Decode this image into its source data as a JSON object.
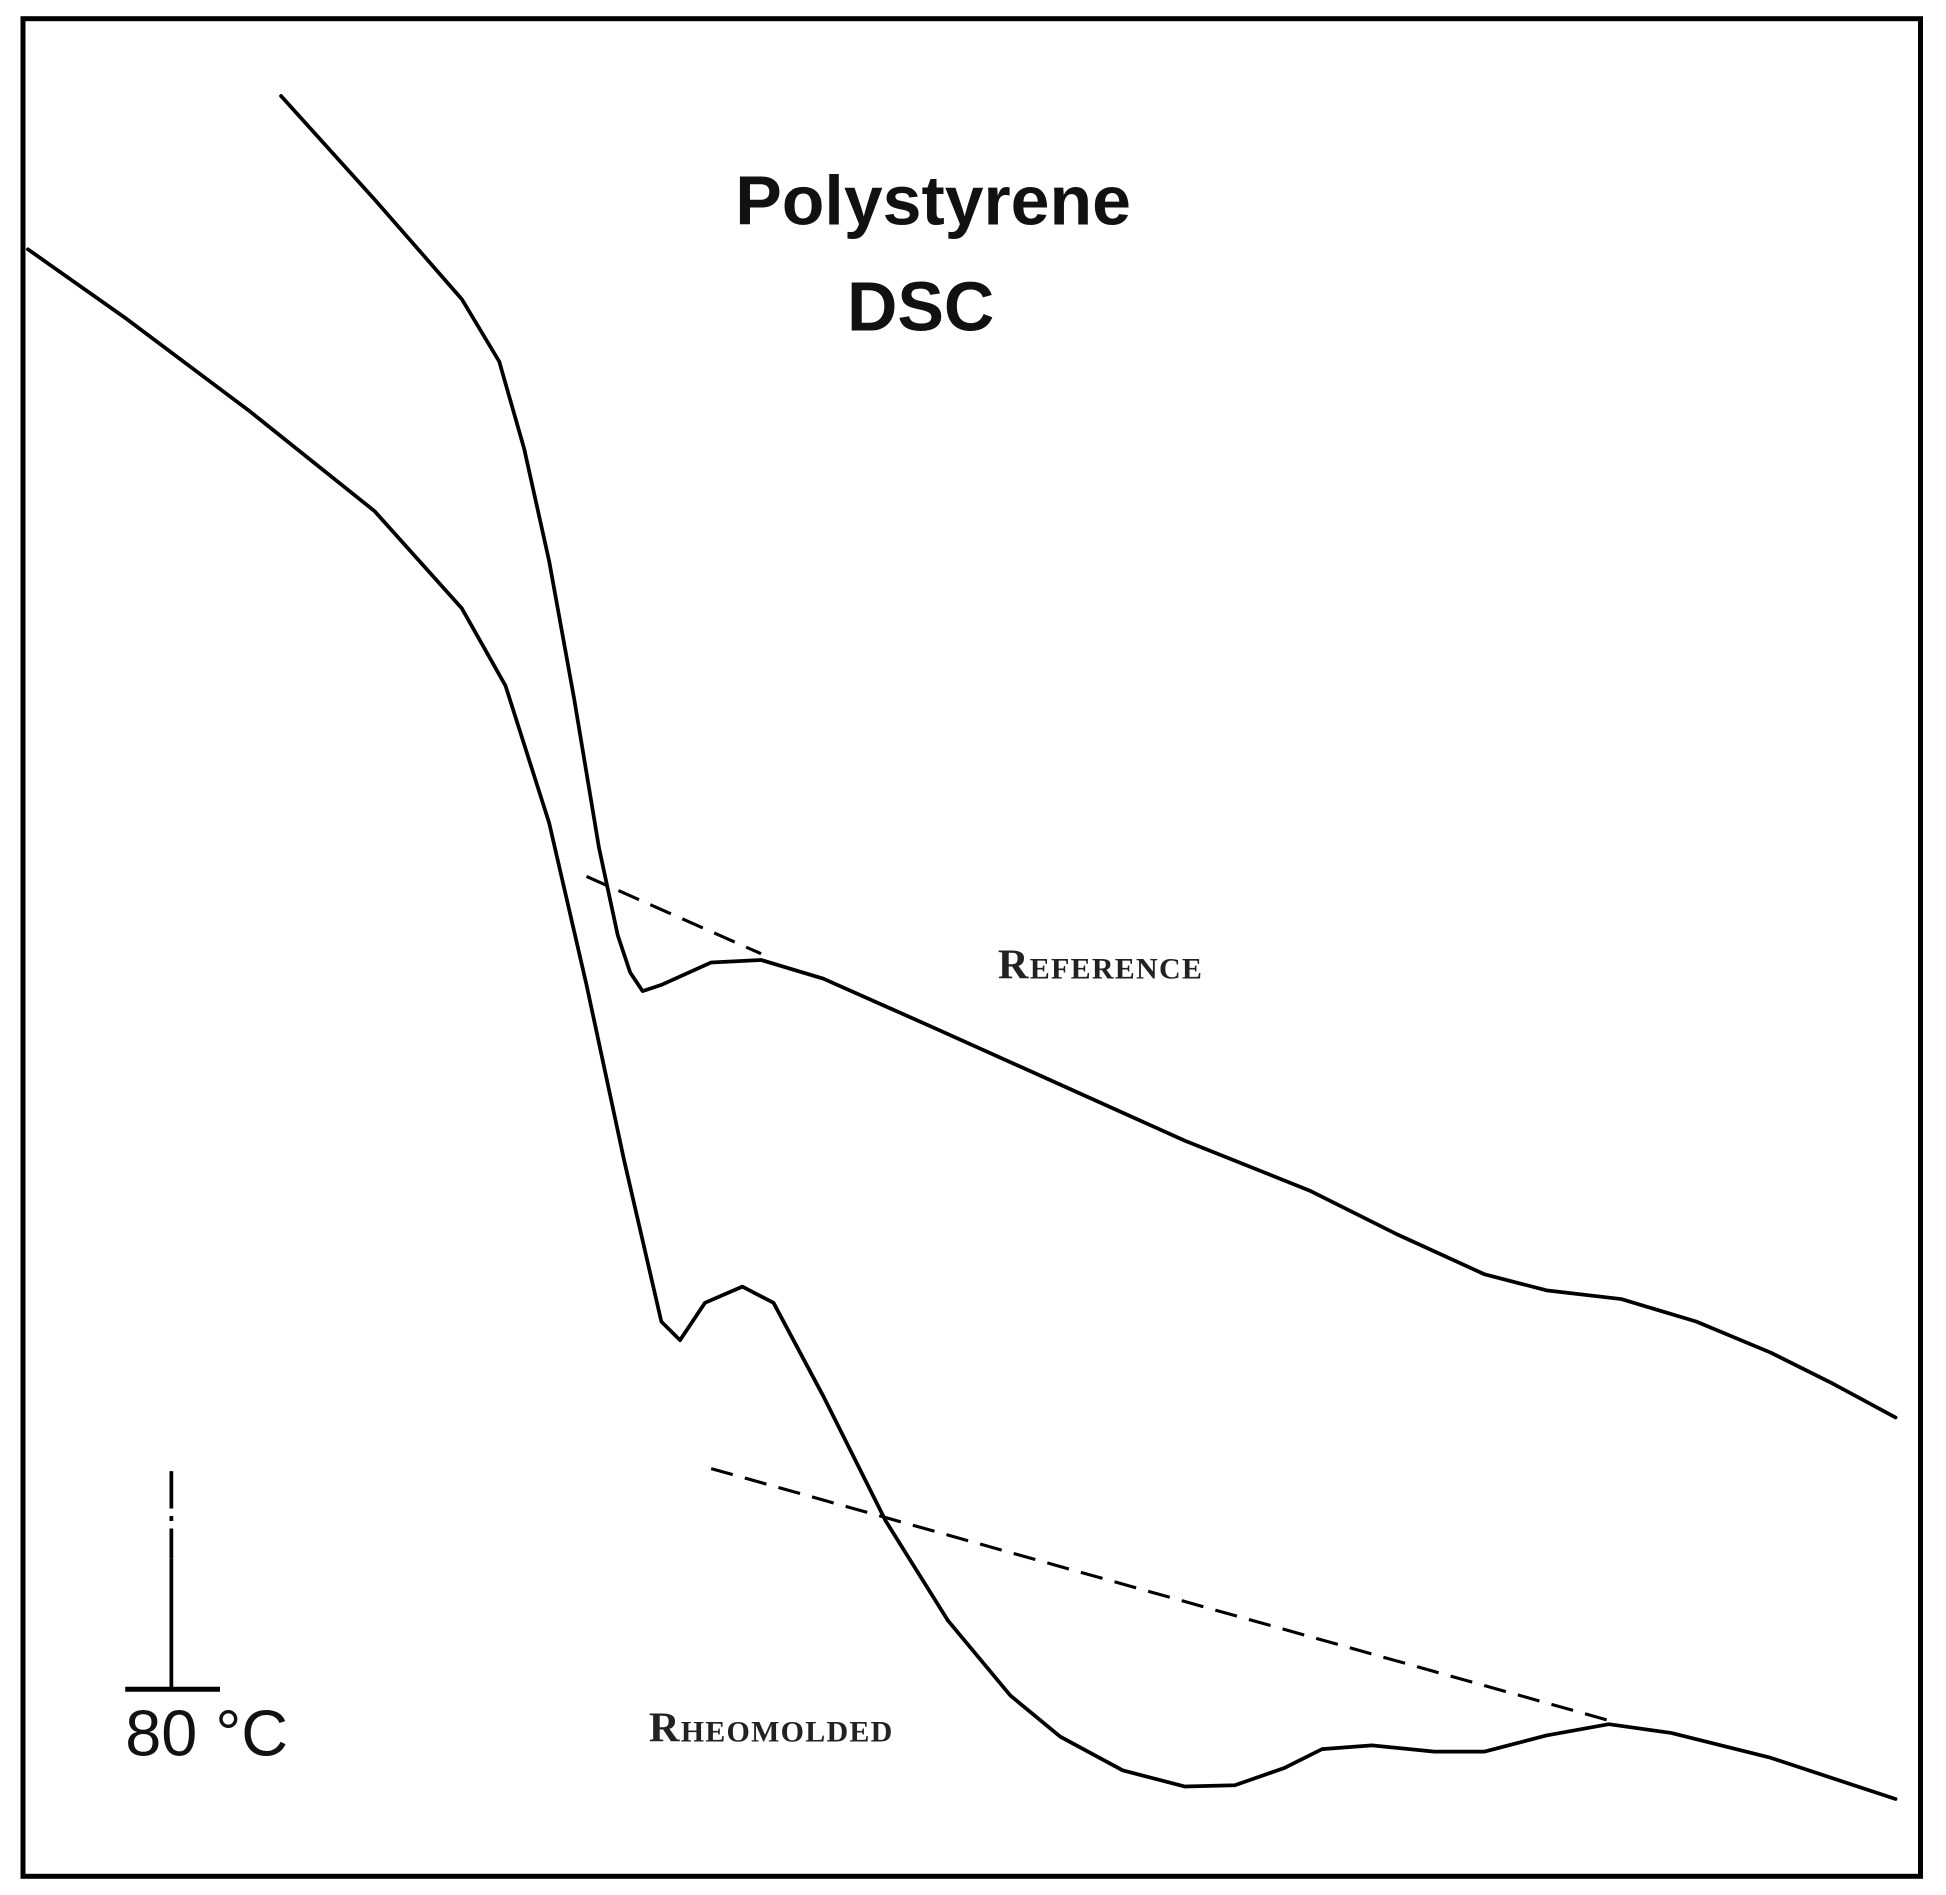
{
  "title": {
    "line1": "Polystyrene",
    "line2": "DSC"
  },
  "labels": {
    "reference": "Reference",
    "rheomolded": "Rheomolded"
  },
  "scale": {
    "label": "80 °C"
  }
}
